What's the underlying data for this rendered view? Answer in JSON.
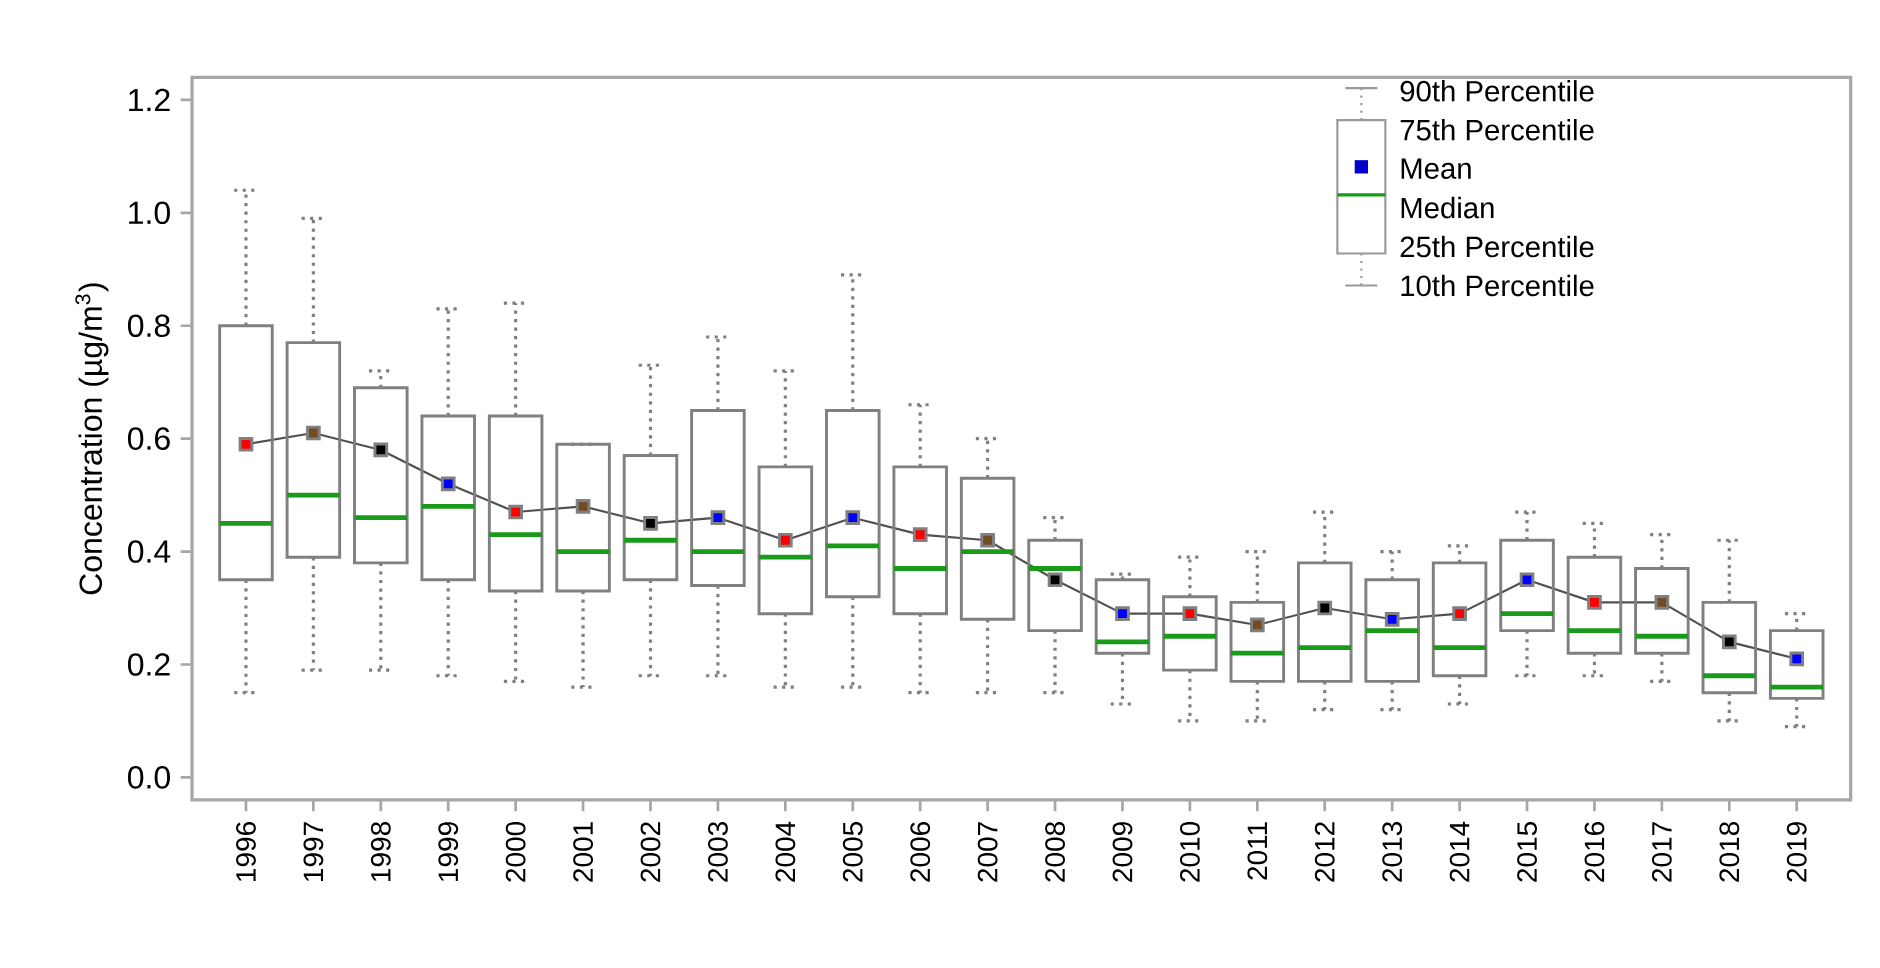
{
  "chart_data": {
    "type": "box",
    "ylabel": "Concentration (µg/m$^{3}$)",
    "categories": [
      "1996",
      "1997",
      "1998",
      "1999",
      "2000",
      "2001",
      "2002",
      "2003",
      "2004",
      "2005",
      "2006",
      "2007",
      "2008",
      "2009",
      "2010",
      "2011",
      "2012",
      "2013",
      "2014",
      "2015",
      "2016",
      "2017",
      "2018",
      "2019"
    ],
    "ylim": [
      -0.04,
      1.24
    ],
    "yticks": [
      {
        "value": 0,
        "label": "0.0"
      },
      {
        "value": 0.2,
        "label": "0.2"
      },
      {
        "value": 0.4,
        "label": "0.4"
      },
      {
        "value": 0.6,
        "label": "0.6"
      },
      {
        "value": 0.8,
        "label": "0.8"
      },
      {
        "value": 1.0,
        "label": "1.0"
      },
      {
        "value": 1.2,
        "label": "1.2"
      }
    ],
    "annotations": [
      "90th Percentile",
      "75th Percentile",
      "Mean",
      "Median",
      "25th Percentile",
      "10th Percentile"
    ],
    "series": [
      {
        "type": "box",
        "color": "#808080",
        "boxes": [
          {
            "low": 0.15,
            "q1": 0.35,
            "median": 0.45,
            "q3": 0.8,
            "high": 1.04,
            "mean": 0.59
          },
          {
            "low": 0.19,
            "q1": 0.39,
            "median": 0.5,
            "q3": 0.77,
            "high": 0.99,
            "mean": 0.61
          },
          {
            "low": 0.19,
            "q1": 0.38,
            "median": 0.46,
            "q3": 0.69,
            "high": 0.72,
            "mean": 0.58
          },
          {
            "low": 0.18,
            "q1": 0.35,
            "median": 0.48,
            "q3": 0.64,
            "high": 0.83,
            "mean": 0.52
          },
          {
            "low": 0.17,
            "q1": 0.33,
            "median": 0.43,
            "q3": 0.64,
            "high": 0.84,
            "mean": 0.47
          },
          {
            "low": 0.16,
            "q1": 0.33,
            "median": 0.4,
            "q3": 0.59,
            "high": 0.59,
            "mean": 0.48
          },
          {
            "low": 0.18,
            "q1": 0.35,
            "median": 0.42,
            "q3": 0.57,
            "high": 0.73,
            "mean": 0.45
          },
          {
            "low": 0.18,
            "q1": 0.34,
            "median": 0.4,
            "q3": 0.65,
            "high": 0.78,
            "mean": 0.46
          },
          {
            "low": 0.16,
            "q1": 0.29,
            "median": 0.39,
            "q3": 0.55,
            "high": 0.72,
            "mean": 0.42
          },
          {
            "low": 0.16,
            "q1": 0.32,
            "median": 0.41,
            "q3": 0.65,
            "high": 0.89,
            "mean": 0.46
          },
          {
            "low": 0.15,
            "q1": 0.29,
            "median": 0.37,
            "q3": 0.55,
            "high": 0.66,
            "mean": 0.43
          },
          {
            "low": 0.15,
            "q1": 0.28,
            "median": 0.4,
            "q3": 0.53,
            "high": 0.6,
            "mean": 0.42
          },
          {
            "low": 0.15,
            "q1": 0.26,
            "median": 0.37,
            "q3": 0.42,
            "high": 0.46,
            "mean": 0.35
          },
          {
            "low": 0.13,
            "q1": 0.22,
            "median": 0.24,
            "q3": 0.35,
            "high": 0.36,
            "mean": 0.29
          },
          {
            "low": 0.1,
            "q1": 0.19,
            "median": 0.25,
            "q3": 0.32,
            "high": 0.39,
            "mean": 0.29
          },
          {
            "low": 0.1,
            "q1": 0.17,
            "median": 0.22,
            "q3": 0.31,
            "high": 0.4,
            "mean": 0.27
          },
          {
            "low": 0.12,
            "q1": 0.17,
            "median": 0.23,
            "q3": 0.38,
            "high": 0.47,
            "mean": 0.3
          },
          {
            "low": 0.12,
            "q1": 0.17,
            "median": 0.26,
            "q3": 0.35,
            "high": 0.4,
            "mean": 0.28
          },
          {
            "low": 0.13,
            "q1": 0.18,
            "median": 0.23,
            "q3": 0.38,
            "high": 0.41,
            "mean": 0.29
          },
          {
            "low": 0.18,
            "q1": 0.26,
            "median": 0.29,
            "q3": 0.42,
            "high": 0.47,
            "mean": 0.35
          },
          {
            "low": 0.18,
            "q1": 0.22,
            "median": 0.26,
            "q3": 0.39,
            "high": 0.45,
            "mean": 0.31
          },
          {
            "low": 0.17,
            "q1": 0.22,
            "median": 0.25,
            "q3": 0.37,
            "high": 0.43,
            "mean": 0.31
          },
          {
            "low": 0.1,
            "q1": 0.15,
            "median": 0.18,
            "q3": 0.31,
            "high": 0.42,
            "mean": 0.24
          },
          {
            "low": 0.09,
            "q1": 0.14,
            "median": 0.16,
            "q3": 0.26,
            "high": 0.29,
            "mean": 0.21
          }
        ]
      },
      {
        "type": "line",
        "color": "#505050",
        "values": [
          0.59,
          0.61,
          0.58,
          0.52,
          0.47,
          0.48,
          0.45,
          0.46,
          0.42,
          0.46,
          0.43,
          0.42,
          0.35,
          0.29,
          0.29,
          0.27,
          0.3,
          0.28,
          0.29,
          0.35,
          0.31,
          0.31,
          0.24,
          0.21
        ]
      }
    ]
  }
}
